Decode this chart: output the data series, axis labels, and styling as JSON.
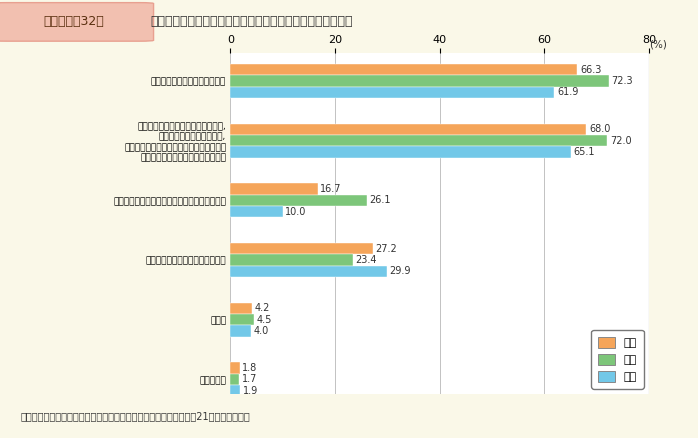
{
  "title_box": "第１－特－32図",
  "title_main": "　女性に能力向上の機会が少ない理由（性別）（複数回答）",
  "categories": [
    "そういった組織風土があるから",
    "女性は途中退職する場合が多いため,\n責任のある仕事を与えたり,\n研修を受けさせたりすることが無駄になる\n可能性が高いと考えられているから",
    "取引先が男性が担当することを望んでいるから",
    "女性職員自身が望んでいないから",
    "その他",
    "分からない"
  ],
  "series": {
    "総数": [
      66.3,
      68.0,
      16.7,
      27.2,
      4.2,
      1.8
    ],
    "女性": [
      72.3,
      72.0,
      26.1,
      23.4,
      4.5,
      1.7
    ],
    "男性": [
      61.9,
      65.1,
      10.0,
      29.9,
      4.0,
      1.9
    ]
  },
  "colors": {
    "総数": "#F5A55A",
    "女性": "#7DC67A",
    "男性": "#72C8E8"
  },
  "xlim": [
    0,
    80
  ],
  "xticks": [
    0,
    20,
    40,
    60,
    80
  ],
  "background": "#FAF8E8",
  "chart_bg": "#FFFFFF",
  "title_box_bg": "#F2C0B0",
  "title_box_border": "#E8A090",
  "note": "（備考）内閣府「男女のライフスタイルに関する意識調査」（平成21年）より作成。"
}
